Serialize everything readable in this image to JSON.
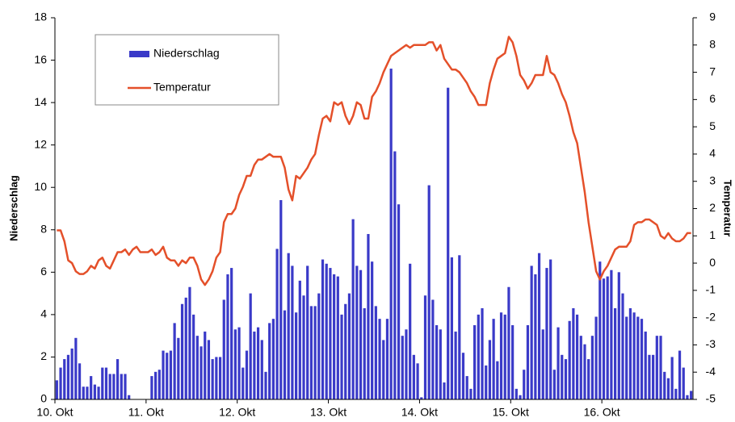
{
  "chart_data": {
    "type": "bar-line",
    "y_label": "Niederschlag",
    "y2_label": "Temperatur",
    "categories": [
      "10. Okt",
      null,
      null,
      null,
      null,
      null,
      null,
      null,
      null,
      null,
      null,
      null,
      null,
      null,
      null,
      null,
      null,
      null,
      null,
      null,
      null,
      null,
      null,
      null,
      "11. Okt",
      null,
      null,
      null,
      null,
      null,
      null,
      null,
      null,
      null,
      null,
      null,
      null,
      null,
      null,
      null,
      null,
      null,
      null,
      null,
      null,
      null,
      null,
      null,
      "12. Okt",
      null,
      null,
      null,
      null,
      null,
      null,
      null,
      null,
      null,
      null,
      null,
      null,
      null,
      null,
      null,
      null,
      null,
      null,
      null,
      null,
      null,
      null,
      null,
      "13. Okt",
      null,
      null,
      null,
      null,
      null,
      null,
      null,
      null,
      null,
      null,
      null,
      null,
      null,
      null,
      null,
      null,
      null,
      null,
      null,
      null,
      null,
      null,
      null,
      "14. Okt",
      null,
      null,
      null,
      null,
      null,
      null,
      null,
      null,
      null,
      null,
      null,
      null,
      null,
      null,
      null,
      null,
      null,
      null,
      null,
      null,
      null,
      null,
      null,
      "15. Okt",
      null,
      null,
      null,
      null,
      null,
      null,
      null,
      null,
      null,
      null,
      null,
      null,
      null,
      null,
      null,
      null,
      null,
      null,
      null,
      null,
      null,
      null,
      null,
      "16. Okt",
      null,
      null,
      null,
      null,
      null,
      null,
      null,
      null,
      null,
      null,
      null,
      null,
      null,
      null,
      null,
      null,
      null,
      null,
      null,
      null,
      null,
      null,
      null
    ],
    "series": [
      {
        "name": "Niederschlag",
        "type": "bar",
        "color": "#3a3ac8",
        "values": [
          0.9,
          1.5,
          1.9,
          2.1,
          2.4,
          2.9,
          1.7,
          0.6,
          0.6,
          1.1,
          0.7,
          0.6,
          1.5,
          1.5,
          1.2,
          1.2,
          1.9,
          1.2,
          1.2,
          0.2,
          0,
          0,
          0,
          0,
          0,
          1.1,
          1.3,
          1.4,
          2.3,
          2.2,
          2.3,
          3.6,
          2.9,
          4.5,
          4.8,
          5.3,
          4.0,
          3.0,
          2.5,
          3.2,
          2.8,
          1.9,
          2.0,
          2.0,
          4.7,
          5.9,
          6.2,
          3.3,
          3.4,
          1.5,
          2.3,
          5.0,
          3.2,
          3.4,
          2.8,
          1.3,
          3.6,
          3.8,
          7.1,
          9.4,
          4.2,
          6.9,
          6.3,
          4.1,
          5.6,
          4.9,
          6.3,
          4.4,
          4.4,
          5.0,
          6.6,
          6.4,
          6.2,
          5.9,
          5.8,
          4.0,
          4.5,
          5.0,
          8.5,
          6.3,
          6.1,
          4.3,
          7.8,
          6.5,
          4.4,
          3.8,
          2.8,
          3.8,
          15.6,
          11.7,
          9.2,
          3.0,
          3.3,
          6.4,
          2.1,
          1.7,
          0.1,
          4.9,
          10.1,
          4.7,
          3.5,
          3.3,
          0.8,
          14.7,
          6.7,
          3.2,
          6.8,
          2.2,
          1.1,
          0.5,
          3.5,
          4.0,
          4.3,
          1.6,
          2.8,
          3.8,
          1.8,
          4.1,
          4.0,
          5.3,
          3.5,
          0.5,
          0.2,
          1.4,
          3.5,
          6.3,
          5.9,
          6.9,
          3.3,
          6.2,
          6.6,
          1.4,
          3.4,
          2.1,
          1.9,
          3.7,
          4.3,
          4.0,
          3.0,
          2.6,
          1.9,
          3.0,
          3.9,
          6.5,
          5.7,
          5.8,
          6.1,
          4.3,
          6.0,
          5.0,
          3.9,
          4.3,
          4.1,
          3.9,
          3.8,
          3.2,
          2.1,
          2.1,
          3.0,
          3.0,
          1.3,
          1.0,
          2.0,
          0.5,
          2.3,
          1.5,
          0.2,
          0.4
        ]
      },
      {
        "name": "Temperatur",
        "type": "line",
        "axis": "y2",
        "color": "#e4502a",
        "values": [
          1.2,
          1.2,
          0.8,
          0.1,
          0,
          -0.3,
          -0.4,
          -0.4,
          -0.3,
          -0.1,
          -0.2,
          0.1,
          0.2,
          -0.1,
          -0.2,
          0.1,
          0.4,
          0.4,
          0.5,
          0.3,
          0.5,
          0.6,
          0.4,
          0.4,
          0.4,
          0.5,
          0.3,
          0.4,
          0.6,
          0.2,
          0.1,
          0.1,
          -0.1,
          0.1,
          0,
          0.2,
          0.2,
          -0.1,
          -0.6,
          -0.8,
          -0.6,
          -0.3,
          0.2,
          0.4,
          1.5,
          1.8,
          1.8,
          2.0,
          2.5,
          2.8,
          3.2,
          3.2,
          3.6,
          3.8,
          3.8,
          3.9,
          4.0,
          3.9,
          3.9,
          3.9,
          3.5,
          2.7,
          2.3,
          3.2,
          3.1,
          3.3,
          3.5,
          3.8,
          4.0,
          4.7,
          5.3,
          5.4,
          5.2,
          5.9,
          5.8,
          5.9,
          5.4,
          5.1,
          5.4,
          5.9,
          5.8,
          5.3,
          5.3,
          6.1,
          6.3,
          6.6,
          7.0,
          7.3,
          7.6,
          7.7,
          7.8,
          7.9,
          8.0,
          7.9,
          8.0,
          8.0,
          8.0,
          8.0,
          8.1,
          8.1,
          7.8,
          8.0,
          7.5,
          7.3,
          7.1,
          7.1,
          7.0,
          6.8,
          6.6,
          6.3,
          6.1,
          5.8,
          5.8,
          5.8,
          6.6,
          7.1,
          7.5,
          7.6,
          7.7,
          8.3,
          8.1,
          7.6,
          6.9,
          6.7,
          6.4,
          6.6,
          6.9,
          6.9,
          6.9,
          7.6,
          7.0,
          6.9,
          6.6,
          6.2,
          5.9,
          5.4,
          4.8,
          4.4,
          3.5,
          2.6,
          1.5,
          0.6,
          -0.3,
          -0.6,
          -0.3,
          -0.1,
          0.2,
          0.5,
          0.6,
          0.6,
          0.6,
          0.8,
          1.4,
          1.5,
          1.5,
          1.6,
          1.6,
          1.5,
          1.4,
          1.0,
          0.9,
          1.1,
          0.9,
          0.8,
          0.8,
          0.9,
          1.1,
          1.1
        ]
      }
    ],
    "ylim": [
      0,
      18
    ],
    "yticks": [
      0,
      2,
      4,
      6,
      8,
      10,
      12,
      14,
      16,
      18
    ],
    "y2lim": [
      -5,
      9
    ],
    "y2ticks": [
      -5,
      -4,
      -3,
      -2,
      -1,
      0,
      1,
      2,
      3,
      4,
      5,
      6,
      7,
      8,
      9
    ],
    "grid": false,
    "legend": "upper left"
  }
}
